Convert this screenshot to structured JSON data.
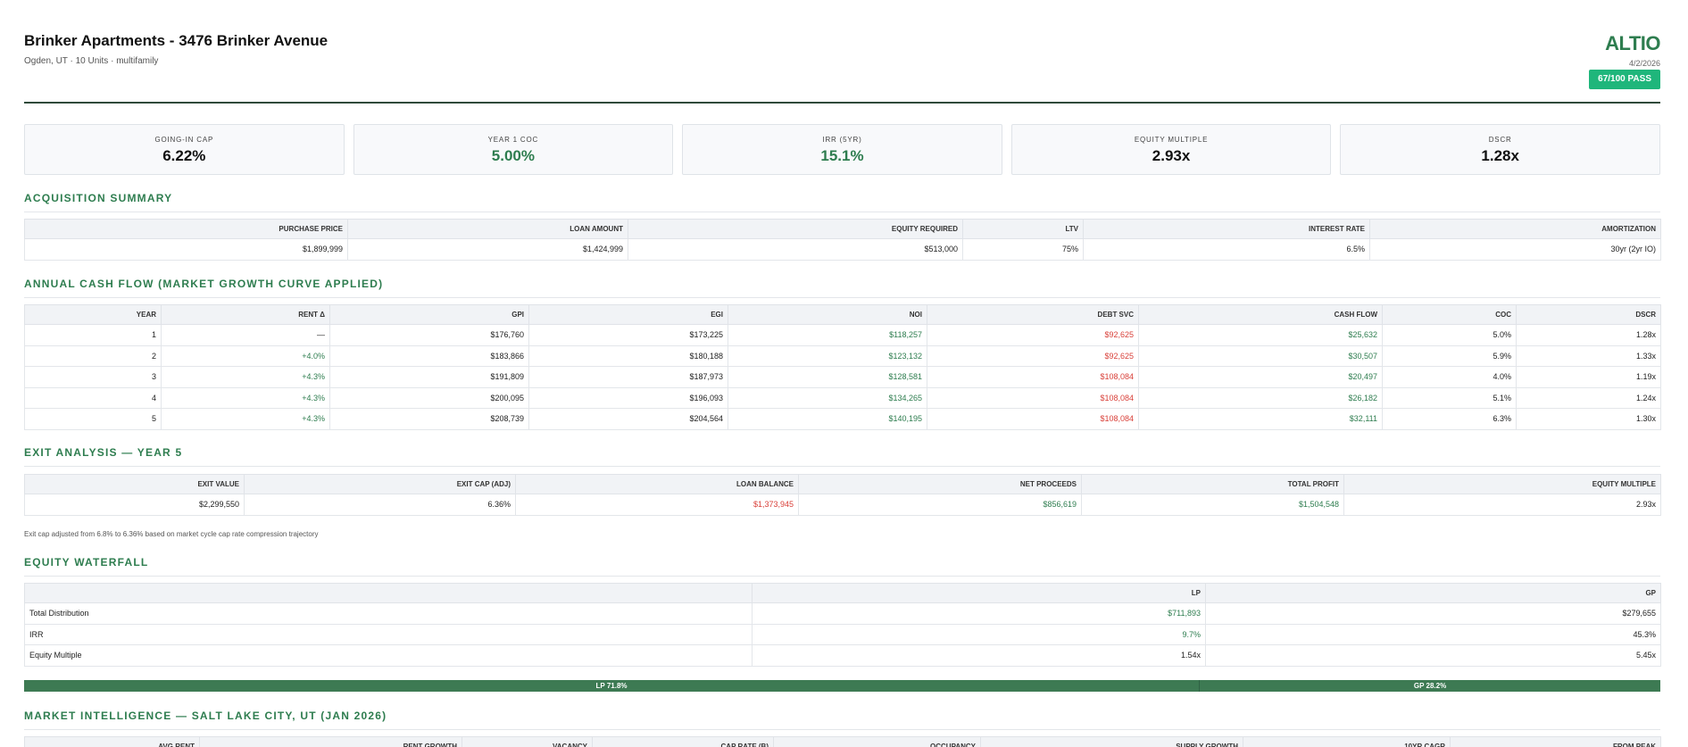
{
  "header": {
    "title": "Brinker Apartments - 3476 Brinker Avenue",
    "subtitle": "Ogden, UT · 10 Units · multifamily",
    "brand": "ALTIO",
    "date": "4/2/2026",
    "score_badge": "67/100 PASS"
  },
  "kpis": [
    {
      "label": "GOING-IN CAP",
      "value": "6.22%",
      "color": "#111111"
    },
    {
      "label": "YEAR 1 COC",
      "value": "5.00%",
      "color": "#2e7d4f"
    },
    {
      "label": "IRR (5YR)",
      "value": "15.1%",
      "color": "#2e7d4f"
    },
    {
      "label": "EQUITY MULTIPLE",
      "value": "2.93x",
      "color": "#111111"
    },
    {
      "label": "DSCR",
      "value": "1.28x",
      "color": "#111111"
    }
  ],
  "acquisition": {
    "title": "ACQUISITION SUMMARY",
    "headers": [
      "PURCHASE PRICE",
      "LOAN AMOUNT",
      "EQUITY REQUIRED",
      "LTV",
      "INTEREST RATE",
      "AMORTIZATION"
    ],
    "values": [
      "$1,899,999",
      "$1,424,999",
      "$513,000",
      "75%",
      "6.5%",
      "30yr (2yr IO)"
    ]
  },
  "cashflow": {
    "title": "ANNUAL CASH FLOW (MARKET GROWTH CURVE APPLIED)",
    "headers": [
      "YEAR",
      "RENT Δ",
      "GPI",
      "EGI",
      "NOI",
      "DEBT SVC",
      "CASH FLOW",
      "COC",
      "DSCR"
    ],
    "rows": [
      [
        "1",
        "—",
        "$176,760",
        "$173,225",
        "$118,257",
        "$92,625",
        "$25,632",
        "5.0%",
        "1.28x"
      ],
      [
        "2",
        "+4.0%",
        "$183,866",
        "$180,188",
        "$123,132",
        "$92,625",
        "$30,507",
        "5.9%",
        "1.33x"
      ],
      [
        "3",
        "+4.3%",
        "$191,809",
        "$187,973",
        "$128,581",
        "$108,084",
        "$20,497",
        "4.0%",
        "1.19x"
      ],
      [
        "4",
        "+4.3%",
        "$200,095",
        "$196,093",
        "$134,265",
        "$108,084",
        "$26,182",
        "5.1%",
        "1.24x"
      ],
      [
        "5",
        "+4.3%",
        "$208,739",
        "$204,564",
        "$140,195",
        "$108,084",
        "$32,111",
        "6.3%",
        "1.30x"
      ]
    ]
  },
  "exit": {
    "title": "EXIT ANALYSIS — YEAR 5",
    "headers": [
      "EXIT VALUE",
      "EXIT CAP (ADJ)",
      "LOAN BALANCE",
      "NET PROCEEDS",
      "TOTAL PROFIT",
      "EQUITY MULTIPLE"
    ],
    "values": [
      "$2,299,550",
      "6.36%",
      "$1,373,945",
      "$856,619",
      "$1,504,548",
      "2.93x"
    ],
    "note": "Exit cap adjusted from 6.8% to 6.36% based on market cycle cap rate compression trajectory"
  },
  "waterfall": {
    "title": "EQUITY WATERFALL",
    "headers": [
      "",
      "LP",
      "GP"
    ],
    "rows": [
      [
        "Total Distribution",
        "$711,893",
        "$279,655"
      ],
      [
        "IRR",
        "9.7%",
        "45.3%"
      ],
      [
        "Equity Multiple",
        "1.54x",
        "5.45x"
      ]
    ],
    "split": {
      "lp_label": "LP 71.8%",
      "gp_label": "GP 28.2%",
      "lp_fraction": 0.718
    }
  },
  "market": {
    "title": "MARKET INTELLIGENCE — SALT LAKE CITY, UT (JAN 2026)",
    "headers": [
      "AVG RENT",
      "RENT GROWTH",
      "VACANCY",
      "CAP RATE (B)",
      "OCCUPANCY",
      "SUPPLY GROWTH",
      "10YR CAGR",
      "FROM PEAK"
    ]
  }
}
